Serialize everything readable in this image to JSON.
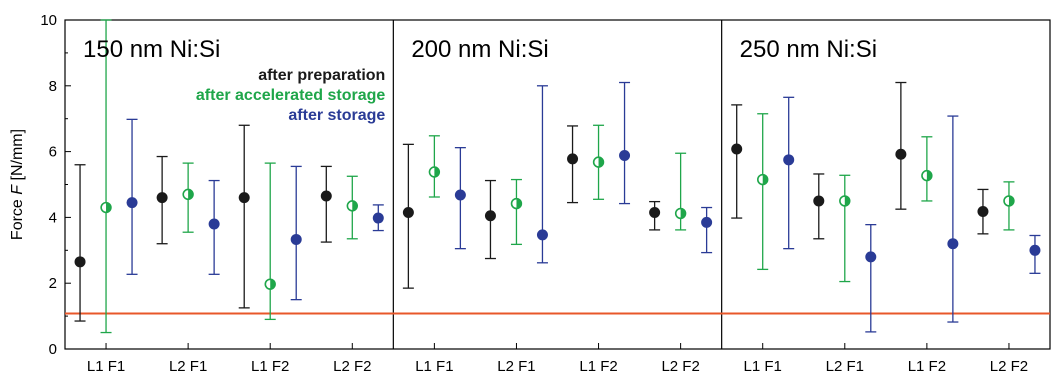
{
  "chart_data": {
    "type": "scatter",
    "ylabel": "Force F [N/mm]",
    "ylabel_prefix": "Force ",
    "ylabel_var": "F",
    "ylabel_unit": " [N/mm]",
    "ylim": [
      0,
      10
    ],
    "yticks": [
      "0",
      "2",
      "4",
      "6",
      "8",
      "10"
    ],
    "categories": [
      "L1 F1",
      "L2 F1",
      "L1 F2",
      "L2 F2"
    ],
    "reference_line": {
      "y": 1.08,
      "color": "#e8572a"
    },
    "series_styles": [
      {
        "name": "after preparation",
        "color": "#1a1a1a",
        "marker": "filled"
      },
      {
        "name": "after accelerated storage",
        "color": "#1fa64a",
        "marker": "half"
      },
      {
        "name": "after storage",
        "color": "#2a3b96",
        "marker": "filled"
      }
    ],
    "panels": [
      {
        "title": "150 nm Ni:Si",
        "series": [
          {
            "name": "after preparation",
            "values": [
              2.65,
              4.6,
              4.6,
              4.65
            ],
            "lower": [
              0.85,
              3.2,
              1.25,
              3.25
            ],
            "upper": [
              5.6,
              5.85,
              6.8,
              5.55
            ]
          },
          {
            "name": "after accelerated storage",
            "values": [
              4.3,
              4.7,
              1.97,
              4.35
            ],
            "lower": [
              0.5,
              3.55,
              0.9,
              3.35
            ],
            "upper": [
              10,
              5.65,
              5.65,
              5.25
            ]
          },
          {
            "name": "after storage",
            "values": [
              4.45,
              3.8,
              3.33,
              3.98
            ],
            "lower": [
              2.27,
              2.27,
              1.5,
              3.6
            ],
            "upper": [
              6.98,
              5.12,
              5.55,
              4.38
            ]
          }
        ]
      },
      {
        "title": "200 nm Ni:Si",
        "series": [
          {
            "name": "after preparation",
            "values": [
              4.15,
              4.05,
              5.78,
              4.15
            ],
            "lower": [
              1.85,
              2.75,
              4.45,
              3.62
            ],
            "upper": [
              6.22,
              5.12,
              6.78,
              4.48
            ]
          },
          {
            "name": "after accelerated storage",
            "values": [
              5.38,
              4.42,
              5.68,
              4.12
            ],
            "lower": [
              4.62,
              3.18,
              4.55,
              3.62
            ],
            "upper": [
              6.48,
              5.15,
              6.8,
              5.95
            ]
          },
          {
            "name": "after storage",
            "values": [
              4.68,
              3.47,
              5.88,
              3.85
            ],
            "lower": [
              3.05,
              2.62,
              4.42,
              2.93
            ],
            "upper": [
              6.12,
              8.0,
              8.1,
              4.3
            ]
          }
        ]
      },
      {
        "title": "250 nm Ni:Si",
        "series": [
          {
            "name": "after preparation",
            "values": [
              6.08,
              4.5,
              5.92,
              4.18
            ],
            "lower": [
              3.98,
              3.35,
              4.25,
              3.5
            ],
            "upper": [
              7.42,
              5.32,
              8.1,
              4.85
            ]
          },
          {
            "name": "after accelerated storage",
            "values": [
              5.15,
              4.5,
              5.27,
              4.5
            ],
            "lower": [
              2.42,
              2.05,
              4.5,
              3.62
            ],
            "upper": [
              7.15,
              5.28,
              6.45,
              5.08
            ]
          },
          {
            "name": "after storage",
            "values": [
              5.75,
              2.8,
              3.2,
              3.0
            ],
            "lower": [
              3.05,
              0.52,
              0.82,
              2.3
            ],
            "upper": [
              7.65,
              3.78,
              7.08,
              3.45
            ]
          }
        ]
      }
    ],
    "legend": {
      "placement": "panel-1-top-right",
      "entries": [
        "after preparation",
        "after accelerated storage",
        "after storage"
      ]
    }
  }
}
